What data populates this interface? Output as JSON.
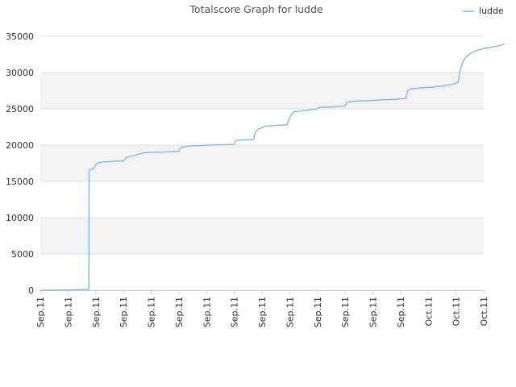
{
  "chart_data": {
    "type": "line",
    "title": "Totalscore Graph for ludde",
    "xlabel": "",
    "ylabel": "",
    "ylim": [
      0,
      35000
    ],
    "yticks": [
      0,
      5000,
      10000,
      15000,
      20000,
      25000,
      30000,
      35000
    ],
    "ytick_labels": [
      "0",
      "5000",
      "10000",
      "15000",
      "20000",
      "25000",
      "30000",
      "35000"
    ],
    "xtick_labels": [
      "Sep.11",
      "Sep.11",
      "Sep.11",
      "Sep.11",
      "Sep.11",
      "Sep.11",
      "Sep.11",
      "Sep.11",
      "Sep.11",
      "Sep.11",
      "Sep.11",
      "Sep.11",
      "Sep.11",
      "Sep.11",
      "Oct.11",
      "Oct.11",
      "Oct.11"
    ],
    "x_index_max": 16,
    "grid": true,
    "legend_position": "top-right",
    "series": [
      {
        "name": "ludde",
        "color": "#7cb5ec",
        "points": [
          [
            0,
            0
          ],
          [
            1.0,
            50
          ],
          [
            1.4,
            80
          ],
          [
            1.6,
            120
          ],
          [
            1.75,
            150
          ],
          [
            1.76,
            16600
          ],
          [
            1.9,
            16700
          ],
          [
            1.95,
            16900
          ],
          [
            2.0,
            17300
          ],
          [
            2.1,
            17600
          ],
          [
            2.3,
            17700
          ],
          [
            2.5,
            17700
          ],
          [
            2.7,
            17800
          ],
          [
            3.0,
            17800
          ],
          [
            3.1,
            18300
          ],
          [
            3.3,
            18500
          ],
          [
            3.5,
            18700
          ],
          [
            3.7,
            18900
          ],
          [
            3.9,
            19000
          ],
          [
            4.5,
            19050
          ],
          [
            4.6,
            19100
          ],
          [
            5.0,
            19150
          ],
          [
            5.05,
            19600
          ],
          [
            5.2,
            19800
          ],
          [
            5.5,
            19900
          ],
          [
            5.9,
            19950
          ],
          [
            6.0,
            20000
          ],
          [
            6.5,
            20050
          ],
          [
            7.0,
            20100
          ],
          [
            7.05,
            20600
          ],
          [
            7.2,
            20700
          ],
          [
            7.6,
            20750
          ],
          [
            7.7,
            20800
          ],
          [
            7.75,
            21700
          ],
          [
            7.85,
            22200
          ],
          [
            8.0,
            22400
          ],
          [
            8.1,
            22600
          ],
          [
            8.4,
            22700
          ],
          [
            8.9,
            22800
          ],
          [
            8.95,
            23300
          ],
          [
            9.05,
            24200
          ],
          [
            9.15,
            24600
          ],
          [
            9.4,
            24700
          ],
          [
            9.8,
            24900
          ],
          [
            10.0,
            25000
          ],
          [
            10.05,
            25200
          ],
          [
            10.5,
            25250
          ],
          [
            10.6,
            25300
          ],
          [
            10.9,
            25350
          ],
          [
            11.0,
            25400
          ],
          [
            11.05,
            25900
          ],
          [
            11.2,
            26000
          ],
          [
            11.5,
            26100
          ],
          [
            12.0,
            26150
          ],
          [
            12.1,
            26200
          ],
          [
            12.8,
            26300
          ],
          [
            13.1,
            26400
          ],
          [
            13.2,
            26450
          ],
          [
            13.25,
            27500
          ],
          [
            13.4,
            27800
          ],
          [
            13.8,
            27900
          ],
          [
            14.2,
            28000
          ],
          [
            14.6,
            28200
          ],
          [
            14.9,
            28400
          ],
          [
            15.0,
            28500
          ],
          [
            15.08,
            28700
          ],
          [
            15.12,
            29800
          ],
          [
            15.18,
            30700
          ],
          [
            15.25,
            31500
          ],
          [
            15.35,
            32100
          ],
          [
            15.5,
            32600
          ],
          [
            15.65,
            32900
          ],
          [
            15.8,
            33100
          ],
          [
            16.0,
            33300
          ],
          [
            16.3,
            33500
          ],
          [
            16.55,
            33700
          ],
          [
            16.75,
            33900
          ]
        ]
      }
    ]
  }
}
